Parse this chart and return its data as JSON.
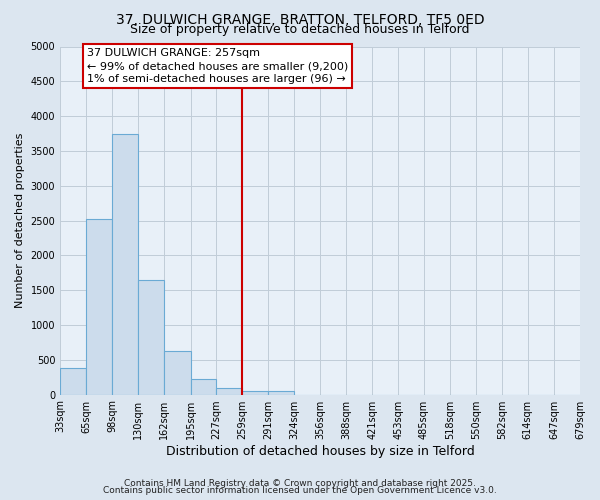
{
  "title1": "37, DULWICH GRANGE, BRATTON, TELFORD, TF5 0ED",
  "title2": "Size of property relative to detached houses in Telford",
  "xlabel": "Distribution of detached houses by size in Telford",
  "ylabel": "Number of detached properties",
  "bar_heights": [
    375,
    2525,
    3750,
    1650,
    625,
    225,
    100,
    50,
    50,
    0,
    0,
    0,
    0,
    0,
    0,
    0,
    0,
    0,
    0,
    0
  ],
  "bin_edges": [
    33,
    65,
    98,
    130,
    162,
    195,
    227,
    259,
    291,
    324,
    356,
    388,
    421,
    453,
    485,
    518,
    550,
    582,
    614,
    647,
    679
  ],
  "bin_labels": [
    "33sqm",
    "65sqm",
    "98sqm",
    "130sqm",
    "162sqm",
    "195sqm",
    "227sqm",
    "259sqm",
    "291sqm",
    "324sqm",
    "356sqm",
    "388sqm",
    "421sqm",
    "453sqm",
    "485sqm",
    "518sqm",
    "550sqm",
    "582sqm",
    "614sqm",
    "647sqm",
    "679sqm"
  ],
  "bar_color": "#ccdcec",
  "bar_edge_color": "#6aaad4",
  "vline_x": 259,
  "vline_color": "#cc0000",
  "annotation_line1": "37 DULWICH GRANGE: 257sqm",
  "annotation_line2": "← 99% of detached houses are smaller (9,200)",
  "annotation_line3": "1% of semi-detached houses are larger (96) →",
  "annotation_box_color": "#cc0000",
  "ylim": [
    0,
    5000
  ],
  "yticks": [
    0,
    500,
    1000,
    1500,
    2000,
    2500,
    3000,
    3500,
    4000,
    4500,
    5000
  ],
  "bg_color": "#dce6f0",
  "plot_bg_color": "#e8f0f8",
  "grid_color": "#c0ccd8",
  "footer1": "Contains HM Land Registry data © Crown copyright and database right 2025.",
  "footer2": "Contains public sector information licensed under the Open Government Licence v3.0.",
  "title1_fontsize": 10,
  "title2_fontsize": 9,
  "tick_fontsize": 7,
  "ylabel_fontsize": 8,
  "xlabel_fontsize": 9,
  "annotation_fontsize": 8
}
